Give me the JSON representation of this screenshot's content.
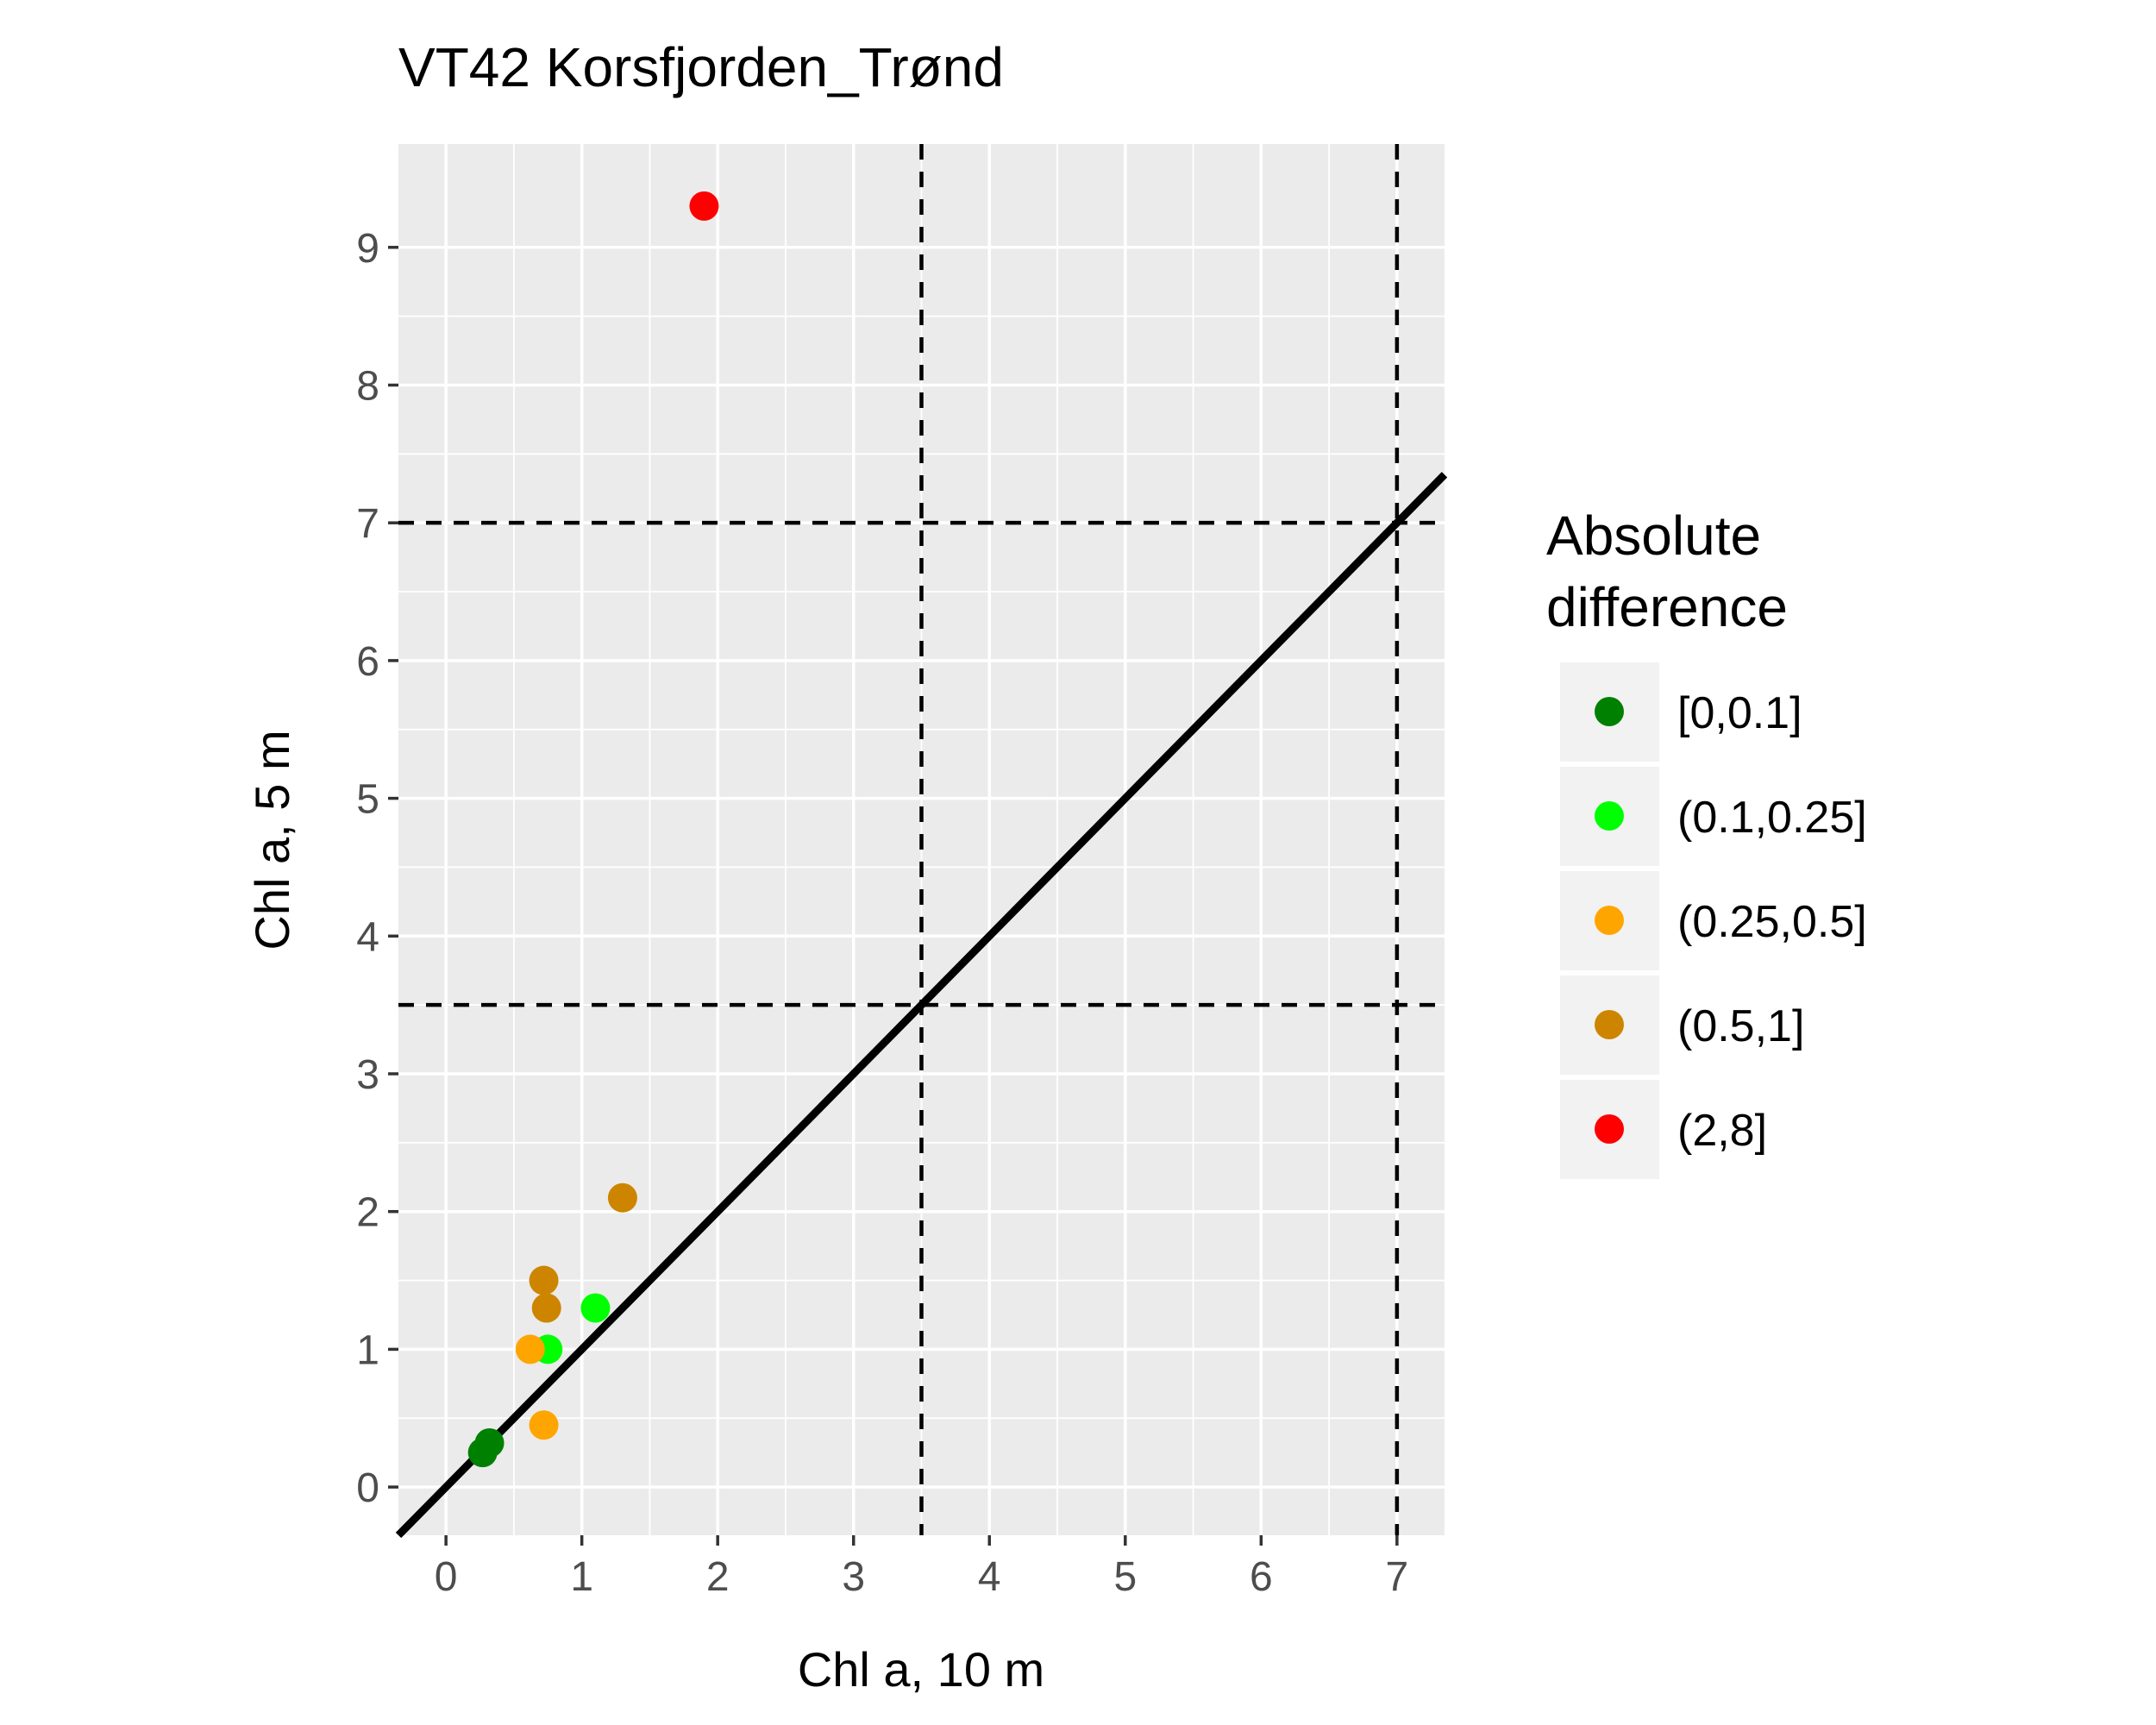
{
  "chart_data": {
    "type": "scatter",
    "title": "VT42 Korsfjorden_Trønd",
    "xlabel": "Chl a, 10 m",
    "ylabel": "Chl a, 5 m",
    "xlim": [
      -0.35,
      7.35
    ],
    "ylim": [
      -0.35,
      9.75
    ],
    "xticks": [
      0,
      1,
      2,
      3,
      4,
      5,
      6,
      7
    ],
    "yticks": [
      0,
      1,
      2,
      3,
      4,
      5,
      6,
      7,
      8,
      9
    ],
    "grid": true,
    "reference_lines": {
      "identity": {
        "slope": 1,
        "intercept": 0
      },
      "vertical_dashed": [
        3.5,
        7
      ],
      "horizontal_dashed": [
        3.5,
        7
      ]
    },
    "legend": {
      "title": "Absolute difference",
      "title_lines": [
        "Absolute",
        "difference"
      ],
      "position": "right",
      "entries": [
        {
          "label": "[0,0.1]",
          "color": "#008000"
        },
        {
          "label": "(0.1,0.25]",
          "color": "#00ff00"
        },
        {
          "label": "(0.25,0.5]",
          "color": "#ffa500"
        },
        {
          "label": "(0.5,1]",
          "color": "#cd8500"
        },
        {
          "label": "(2,8]",
          "color": "#ff0000"
        }
      ]
    },
    "points": [
      {
        "x": 0.27,
        "y": 0.25,
        "group": "[0,0.1]"
      },
      {
        "x": 0.32,
        "y": 0.32,
        "group": "[0,0.1]"
      },
      {
        "x": 0.75,
        "y": 1.0,
        "group": "(0.1,0.25]"
      },
      {
        "x": 1.1,
        "y": 1.3,
        "group": "(0.1,0.25]"
      },
      {
        "x": 0.62,
        "y": 1.0,
        "group": "(0.25,0.5]"
      },
      {
        "x": 0.72,
        "y": 0.45,
        "group": "(0.25,0.5]"
      },
      {
        "x": 0.72,
        "y": 1.5,
        "group": "(0.5,1]"
      },
      {
        "x": 0.74,
        "y": 1.3,
        "group": "(0.5,1]"
      },
      {
        "x": 1.3,
        "y": 2.1,
        "group": "(0.5,1]"
      },
      {
        "x": 1.9,
        "y": 9.3,
        "group": "(2,8]"
      }
    ]
  }
}
